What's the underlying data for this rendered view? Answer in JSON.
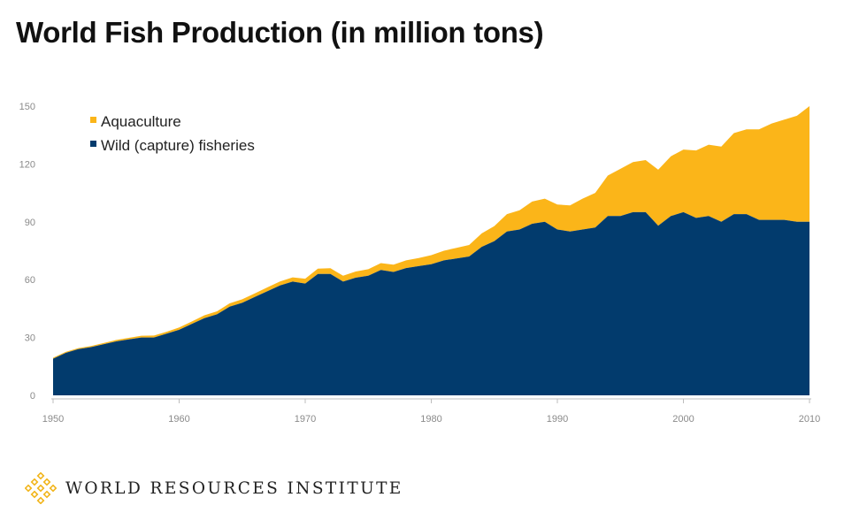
{
  "header": {
    "title": "World Fish Production (in million tons)"
  },
  "footer": {
    "organization": "WORLD RESOURCES INSTITUTE"
  },
  "colors": {
    "aquaculture": "#FBB519",
    "wild": "#023B6D",
    "logo": "#F2B51C"
  },
  "chart_data": {
    "type": "area",
    "stacked": true,
    "title": "World Fish Production (in million tons)",
    "xlabel": "",
    "ylabel": "",
    "xlim": [
      1950,
      2010
    ],
    "ylim": [
      0,
      150
    ],
    "x_ticks": [
      1950,
      1960,
      1970,
      1980,
      1990,
      2000,
      2010
    ],
    "y_ticks": [
      0,
      30,
      60,
      90,
      120,
      150
    ],
    "grid": false,
    "legend": "top-left",
    "x": [
      1950,
      1951,
      1952,
      1953,
      1954,
      1955,
      1956,
      1957,
      1958,
      1959,
      1960,
      1961,
      1962,
      1963,
      1964,
      1965,
      1966,
      1967,
      1968,
      1969,
      1970,
      1971,
      1972,
      1973,
      1974,
      1975,
      1976,
      1977,
      1978,
      1979,
      1980,
      1981,
      1982,
      1983,
      1984,
      1985,
      1986,
      1987,
      1988,
      1989,
      1990,
      1991,
      1992,
      1993,
      1994,
      1995,
      1996,
      1997,
      1998,
      1999,
      2000,
      2001,
      2002,
      2003,
      2004,
      2005,
      2006,
      2007,
      2008,
      2009,
      2010
    ],
    "series": [
      {
        "name": "Wild (capture) fisheries",
        "color": "#023B6D",
        "values": [
          19,
          22,
          24,
          25,
          26.5,
          28,
          29,
          30,
          30,
          32,
          34,
          37,
          40,
          42,
          46,
          48,
          51,
          54,
          57,
          59,
          58,
          63,
          63,
          59,
          61,
          62,
          65,
          64,
          66,
          67,
          68,
          70,
          71,
          72,
          77,
          80,
          85,
          86,
          89,
          90,
          86,
          85,
          86,
          87,
          93,
          93,
          95,
          95,
          88,
          93,
          95,
          92,
          93,
          90,
          94,
          94,
          91,
          91,
          91,
          90,
          90
        ]
      },
      {
        "name": "Aquaculture",
        "color": "#FBB519",
        "values": [
          0.5,
          0.5,
          0.5,
          0.6,
          0.6,
          0.7,
          0.8,
          0.9,
          1.0,
          1.0,
          1.2,
          1.3,
          1.5,
          1.6,
          1.7,
          1.8,
          1.9,
          2.0,
          2.1,
          2.2,
          2.5,
          2.7,
          2.9,
          3.0,
          3.2,
          3.4,
          3.6,
          3.8,
          4.0,
          4.2,
          4.7,
          5.0,
          5.5,
          6.0,
          7.0,
          7.8,
          9.0,
          10.0,
          11.5,
          12.0,
          13.0,
          13.5,
          16.0,
          18.0,
          21.0,
          24.5,
          26.0,
          27.0,
          29.0,
          31.0,
          32.5,
          35.0,
          37.0,
          39.0,
          42.0,
          44.0,
          47.0,
          50.0,
          52.0,
          55.0,
          60.0
        ]
      }
    ]
  }
}
